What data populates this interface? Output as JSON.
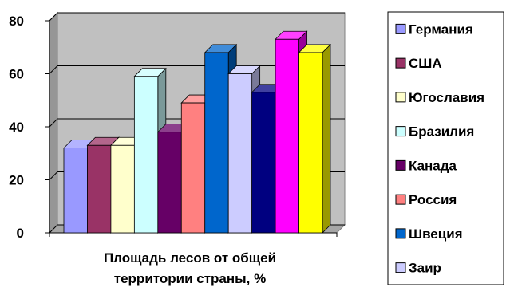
{
  "chart_data": {
    "type": "bar",
    "title": "",
    "xlabel": [
      "Площадь лесов от общей",
      "территории страны, %"
    ],
    "ylabel": "",
    "ylim": [
      0,
      80
    ],
    "yticks": [
      "0",
      "20",
      "40",
      "60",
      "80"
    ],
    "grid": true,
    "legend_position": "right",
    "three_d": true,
    "series": [
      {
        "name": "Германия",
        "value": 32,
        "color": "#9999ff"
      },
      {
        "name": "США",
        "value": 33,
        "color": "#993366"
      },
      {
        "name": "Югославия",
        "value": 33,
        "color": "#ffffcc"
      },
      {
        "name": "Бразилия",
        "value": 59,
        "color": "#ccffff"
      },
      {
        "name": "Канада",
        "value": 38,
        "color": "#660066"
      },
      {
        "name": "Россия",
        "value": 49,
        "color": "#ff8080"
      },
      {
        "name": "Швеция",
        "value": 68,
        "color": "#0066cc"
      },
      {
        "name": "Заир",
        "value": 60,
        "color": "#ccccff"
      },
      {
        "name": "",
        "value": 53,
        "color": "#000080"
      },
      {
        "name": "",
        "value": 73,
        "color": "#ff00ff"
      },
      {
        "name": "",
        "value": 68,
        "color": "#ffff00"
      }
    ],
    "colors": {
      "plot_wall": "#c0c0c0",
      "plot_floor": "#a6a6a6",
      "grid": "#000000"
    }
  }
}
